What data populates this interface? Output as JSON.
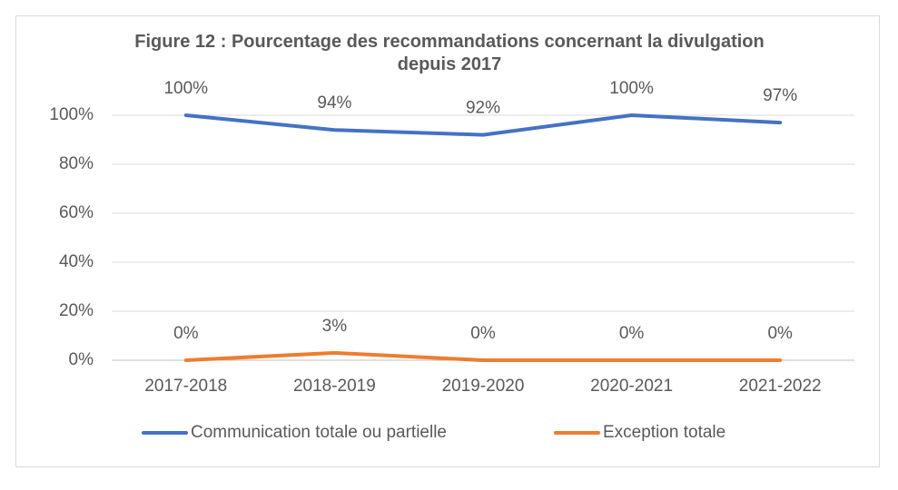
{
  "chart_data": {
    "type": "line",
    "title": "Figure 12 : Pourcentage des recommandations concernant la divulgation depuis 2017",
    "categories": [
      "2017-2018",
      "2018-2019",
      "2019-2020",
      "2020-2021",
      "2021-2022"
    ],
    "series": [
      {
        "name": "Communication totale ou partielle",
        "color": "#4472c4",
        "values": [
          100,
          94,
          92,
          100,
          97
        ],
        "value_labels": [
          "100%",
          "94%",
          "92%",
          "100%",
          "97%"
        ]
      },
      {
        "name": "Exception totale",
        "color": "#ed7d31",
        "values": [
          0,
          3,
          0,
          0,
          0
        ],
        "value_labels": [
          "0%",
          "3%",
          "0%",
          "0%",
          "0%"
        ]
      }
    ],
    "ylim": [
      0,
      100
    ],
    "yticks": [
      {
        "value": 0,
        "label": "0%"
      },
      {
        "value": 20,
        "label": "20%"
      },
      {
        "value": 40,
        "label": "40%"
      },
      {
        "value": 60,
        "label": "60%"
      },
      {
        "value": 80,
        "label": "80%"
      },
      {
        "value": 100,
        "label": "100%"
      }
    ],
    "grid": true,
    "legend": "bottom"
  }
}
